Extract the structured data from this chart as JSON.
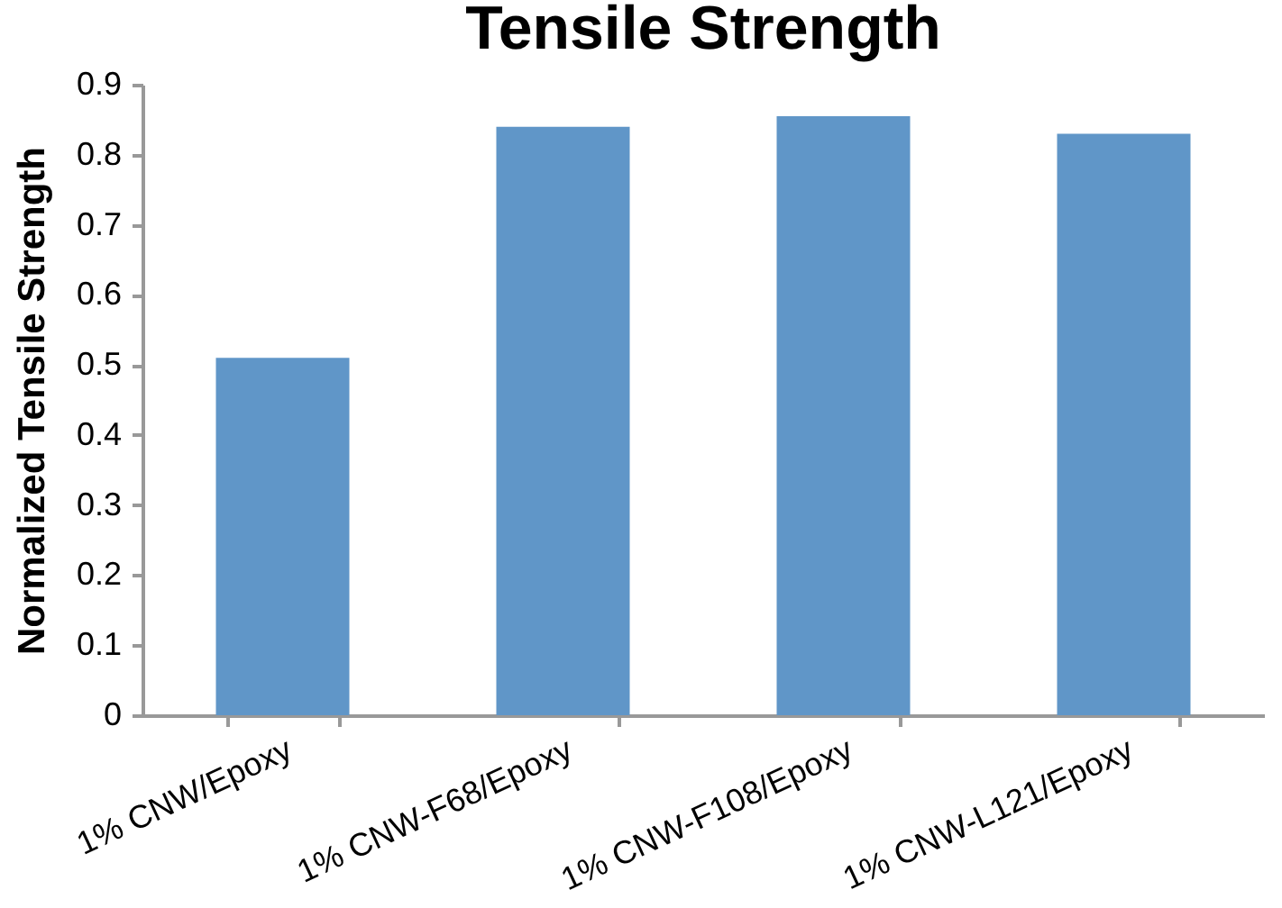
{
  "chart_data": {
    "type": "bar",
    "title": "Tensile Strength",
    "ylabel": "Normalized Tensile Strength",
    "categories": [
      "1% CNW/Epoxy",
      "1% CNW-F68/Epoxy",
      "1% CNW-F108/Epoxy",
      "1% CNW-L121/Epoxy"
    ],
    "values": [
      0.51,
      0.84,
      0.855,
      0.83
    ],
    "color": "#6096c8",
    "ylim": [
      0,
      0.9
    ],
    "yticks": [
      0,
      0.1,
      0.2,
      0.3,
      0.4,
      0.5,
      0.6,
      0.7,
      0.8,
      0.9
    ],
    "grid": false
  }
}
